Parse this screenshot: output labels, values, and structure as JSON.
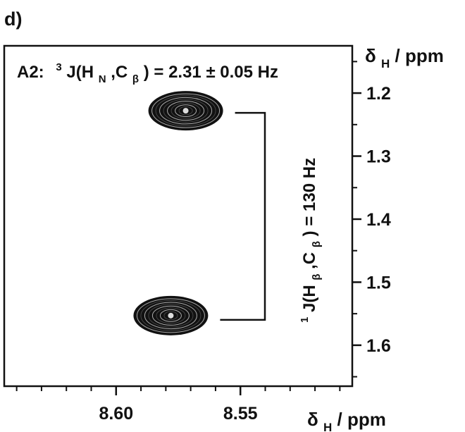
{
  "panel_label": "d)",
  "annotation": {
    "prefix": "A2:",
    "sup": "3",
    "main": "J(H",
    "sub1": "N",
    "comma": ",C",
    "sub2": "β",
    "suffix": ") = 2.31 ± 0.05 Hz"
  },
  "coupling_label": {
    "sup": "1",
    "main": "J(H",
    "sub1": "β",
    "comma": ",C",
    "sub2": "β",
    "suffix": ") = 130 Hz"
  },
  "x_axis_label": {
    "delta": "δ",
    "sub": "H",
    "unit": " / ppm"
  },
  "y_axis_label": {
    "delta": "δ",
    "sub": "H",
    "unit": " / ppm"
  },
  "chart_data": {
    "type": "scatter",
    "xlim": [
      8.645,
      8.505
    ],
    "ylim": [
      1.125,
      1.665
    ],
    "x_ticks": [
      8.6,
      8.55
    ],
    "x_tick_labels": [
      "8.60",
      "8.55"
    ],
    "y_ticks": [
      1.2,
      1.3,
      1.4,
      1.5,
      1.6
    ],
    "y_tick_labels": [
      "1.2",
      "1.3",
      "1.4",
      "1.5",
      "1.6"
    ],
    "peaks": [
      {
        "x": 8.572,
        "y": 1.228
      },
      {
        "x": 8.578,
        "y": 1.553
      }
    ],
    "grid": false
  }
}
